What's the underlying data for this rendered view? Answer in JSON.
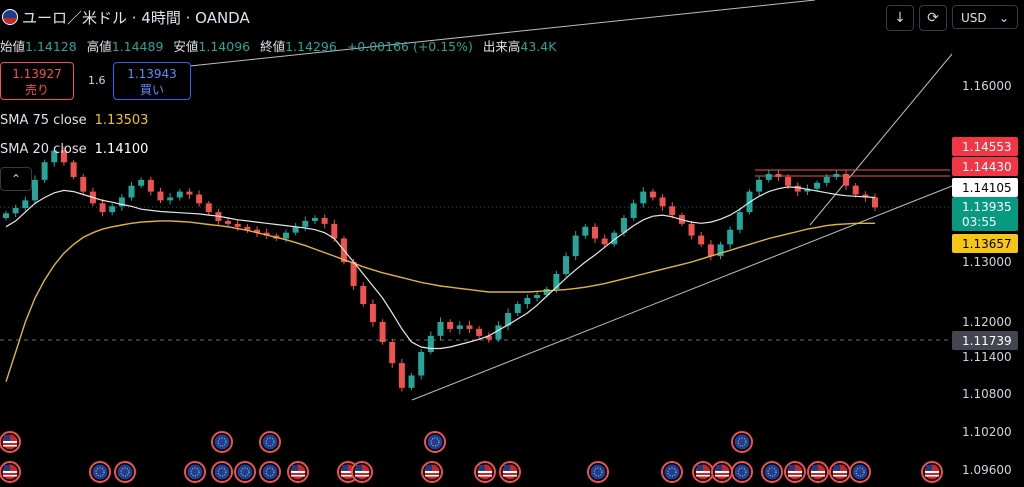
{
  "header": {
    "title": "ユーロ／米ドル · 4時間 · OANDA",
    "ohlc": [
      {
        "label": "始値",
        "value": "1.14128"
      },
      {
        "label": "高値",
        "value": "1.14489"
      },
      {
        "label": "安値",
        "value": "1.14096"
      },
      {
        "label": "終値",
        "value": "1.14296"
      },
      {
        "label": "",
        "value": "+0.00166 (+0.15%)"
      },
      {
        "label": "出来高",
        "value": "43.4K"
      }
    ]
  },
  "trade": {
    "sell_price": "1.13927",
    "sell_label": "売り",
    "spread": "1.6",
    "buy_price": "1.13943",
    "buy_label": "買い"
  },
  "indicators": [
    {
      "label": "SMA 75 close",
      "value": "1.13503",
      "color": "#f0c419"
    },
    {
      "label": "SMA 20 close",
      "value": "1.14100",
      "color": "#ffffff"
    }
  ],
  "toolbar": {
    "currency": "USD"
  },
  "colors": {
    "up": "#26a69a",
    "down": "#ef5350",
    "sma75": "#e3b341",
    "sma20": "#e6e6e6",
    "trend": "#bdbdbd"
  },
  "chart_data": {
    "type": "candlestick",
    "instrument": "EUR/USD 4H",
    "y_ticks": [
      1.16,
      1.13,
      1.12,
      1.114,
      1.108,
      1.102,
      1.096
    ],
    "price_labels": [
      {
        "text": "1.14553",
        "value": 1.14553,
        "bg": "#f23645",
        "fg": "#ffffff"
      },
      {
        "text": "1.14430",
        "value": 1.1443,
        "bg": "#f23645",
        "fg": "#ffffff"
      },
      {
        "text": "1.14105",
        "value": 1.14105,
        "bg": "#ffffff",
        "fg": "#000000"
      },
      {
        "text": "1.13935",
        "sub": "03:55",
        "value": 1.13935,
        "bg": "#089981",
        "fg": "#ffffff"
      },
      {
        "text": "1.13657",
        "value": 1.13657,
        "bg": "#f5c518",
        "fg": "#000000"
      },
      {
        "text": "1.11739",
        "value": 1.11739,
        "bg": "#434651",
        "fg": "#ffffff"
      }
    ],
    "close_series": [
      1.1383,
      1.1392,
      1.1405,
      1.144,
      1.147,
      1.149,
      1.147,
      1.1445,
      1.142,
      1.14,
      1.1385,
      1.1395,
      1.141,
      1.143,
      1.144,
      1.142,
      1.1405,
      1.141,
      1.142,
      1.1415,
      1.14,
      1.1385,
      1.137,
      1.1365,
      1.136,
      1.1355,
      1.135,
      1.1345,
      1.134,
      1.135,
      1.136,
      1.137,
      1.1375,
      1.1365,
      1.134,
      1.13,
      1.126,
      1.123,
      1.12,
      1.117,
      1.113,
      1.109,
      1.111,
      1.115,
      1.118,
      1.12,
      1.119,
      1.1195,
      1.119,
      1.118,
      1.1175,
      1.1195,
      1.1215,
      1.123,
      1.124,
      1.1245,
      1.1255,
      1.128,
      1.131,
      1.1345,
      1.136,
      1.134,
      1.133,
      1.135,
      1.1375,
      1.14,
      1.142,
      1.141,
      1.1395,
      1.138,
      1.1365,
      1.1345,
      1.133,
      1.131,
      1.133,
      1.1355,
      1.1385,
      1.142,
      1.144,
      1.145,
      1.1445,
      1.143,
      1.142,
      1.1425,
      1.1435,
      1.1445,
      1.145,
      1.143,
      1.1415,
      1.141,
      1.1393
    ],
    "sma20": [
      1.136,
      1.137,
      1.1385,
      1.14,
      1.141,
      1.1418,
      1.1422,
      1.142,
      1.1415,
      1.141,
      1.1405,
      1.1402,
      1.1398,
      1.1395,
      1.139,
      1.1388,
      1.1386,
      1.1385,
      1.1384,
      1.1383,
      1.1382,
      1.138,
      1.1378,
      1.1375,
      1.1372,
      1.137,
      1.1368,
      1.1366,
      1.1364,
      1.1362,
      1.136,
      1.1358,
      1.1355,
      1.135,
      1.134,
      1.132,
      1.13,
      1.128,
      1.126,
      1.124,
      1.1215,
      1.119,
      1.117,
      1.116,
      1.1157,
      1.1157,
      1.116,
      1.1165,
      1.117,
      1.1175,
      1.118,
      1.1188,
      1.1196,
      1.1205,
      1.1215,
      1.1228,
      1.1243,
      1.1258,
      1.1273,
      1.1287,
      1.13,
      1.1312,
      1.1325,
      1.1338,
      1.135,
      1.1362,
      1.1372,
      1.1378,
      1.138,
      1.1377,
      1.1372,
      1.1368,
      1.1366,
      1.1368,
      1.1373,
      1.138,
      1.139,
      1.1402,
      1.1412,
      1.142,
      1.1425,
      1.1428,
      1.1427,
      1.1424,
      1.1421,
      1.1418,
      1.1415,
      1.1413,
      1.1412,
      1.1411,
      1.141
    ],
    "sma75": [
      1.11,
      1.115,
      1.12,
      1.124,
      1.127,
      1.1295,
      1.1315,
      1.133,
      1.1342,
      1.135,
      1.1356,
      1.136,
      1.1363,
      1.1366,
      1.1368,
      1.1369,
      1.137,
      1.137,
      1.1369,
      1.1368,
      1.1366,
      1.1364,
      1.1362,
      1.136,
      1.1357,
      1.1354,
      1.135,
      1.1346,
      1.1342,
      1.1338,
      1.1333,
      1.1328,
      1.1322,
      1.1316,
      1.131,
      1.1304,
      1.1298,
      1.1292,
      1.1287,
      1.1282,
      1.1278,
      1.1274,
      1.127,
      1.1266,
      1.1263,
      1.126,
      1.1258,
      1.1256,
      1.1254,
      1.1252,
      1.125,
      1.125,
      1.125,
      1.125,
      1.125,
      1.1251,
      1.1252,
      1.1253,
      1.1254,
      1.1256,
      1.1258,
      1.1261,
      1.1264,
      1.1268,
      1.1272,
      1.1276,
      1.128,
      1.1284,
      1.1288,
      1.1292,
      1.1296,
      1.13,
      1.1305,
      1.131,
      1.1315,
      1.132,
      1.1325,
      1.133,
      1.1335,
      1.134,
      1.1344,
      1.1348,
      1.1352,
      1.1356,
      1.1359,
      1.1362,
      1.1364,
      1.1365,
      1.1366,
      1.1366,
      1.1366
    ],
    "events_row1": [
      "us",
      "eu",
      "eu",
      "eu",
      "eu"
    ],
    "events_row2": [
      "us",
      "eu",
      "eu",
      "eu",
      "eu",
      "eu",
      "eu",
      "us",
      "us",
      "us",
      "us",
      "us",
      "us",
      "eu",
      "eu",
      "us",
      "us",
      "eu",
      "eu",
      "us",
      "us",
      "us",
      "eu",
      "us"
    ]
  }
}
